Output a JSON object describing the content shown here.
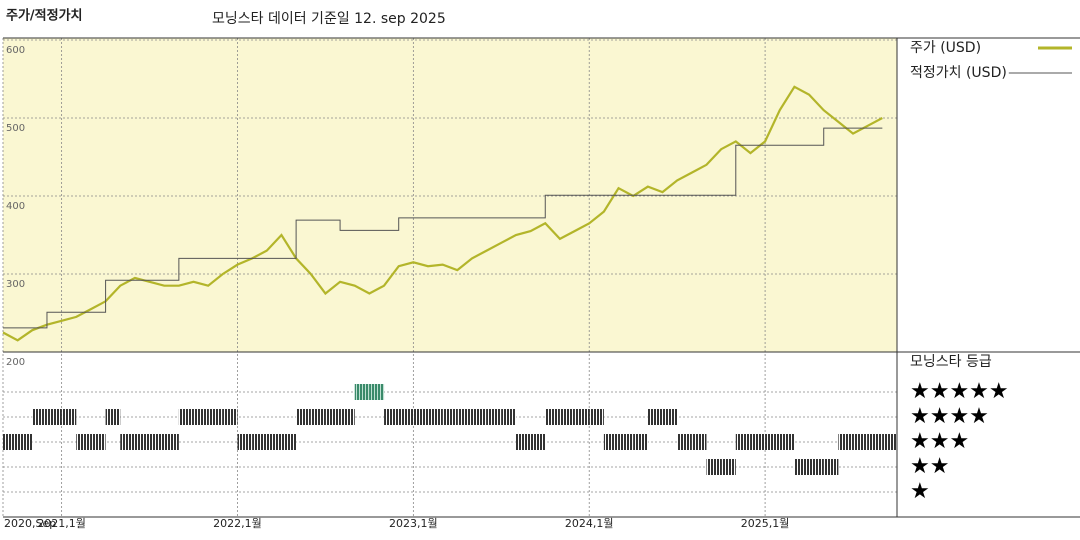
{
  "chart_data": [
    {
      "type": "line",
      "title": "주가/적정가치",
      "subtitle": "모닝스타 데이터 기준일 12. sep 2025",
      "x": [
        "2020-09",
        "2020-10",
        "2020-11",
        "2020-12",
        "2021-01",
        "2021-02",
        "2021-03",
        "2021-04",
        "2021-05",
        "2021-06",
        "2021-07",
        "2021-08",
        "2021-09",
        "2021-10",
        "2021-11",
        "2021-12",
        "2022-01",
        "2022-02",
        "2022-03",
        "2022-04",
        "2022-05",
        "2022-06",
        "2022-07",
        "2022-08",
        "2022-09",
        "2022-10",
        "2022-11",
        "2022-12",
        "2023-01",
        "2023-02",
        "2023-03",
        "2023-04",
        "2023-05",
        "2023-06",
        "2023-07",
        "2023-08",
        "2023-09",
        "2023-10",
        "2023-11",
        "2023-12",
        "2024-01",
        "2024-02",
        "2024-03",
        "2024-04",
        "2024-05",
        "2024-06",
        "2024-07",
        "2024-08",
        "2024-09",
        "2024-10",
        "2024-11",
        "2024-12",
        "2025-01",
        "2025-02",
        "2025-03",
        "2025-04",
        "2025-05",
        "2025-06",
        "2025-07",
        "2025-08",
        "2025-09"
      ],
      "series": [
        {
          "name": "주가 (USD)",
          "color": "#b3b52a",
          "values": [
            225,
            215,
            228,
            235,
            240,
            245,
            255,
            265,
            285,
            295,
            290,
            285,
            285,
            290,
            285,
            300,
            312,
            320,
            330,
            350,
            320,
            300,
            275,
            290,
            285,
            275,
            285,
            310,
            315,
            310,
            312,
            305,
            320,
            330,
            340,
            350,
            355,
            365,
            345,
            355,
            365,
            380,
            410,
            400,
            412,
            405,
            420,
            430,
            440,
            460,
            470,
            455,
            470,
            510,
            540,
            530,
            510,
            495,
            480,
            490,
            500
          ]
        },
        {
          "name": "적정가치 (USD)",
          "color": "#555555",
          "step": true,
          "values": [
            231,
            231,
            231,
            251,
            251,
            251,
            251,
            292,
            292,
            292,
            292,
            292,
            320,
            320,
            320,
            320,
            320,
            320,
            320,
            320,
            369,
            369,
            369,
            356,
            356,
            356,
            356,
            372,
            372,
            372,
            372,
            372,
            372,
            372,
            372,
            372,
            372,
            401,
            401,
            401,
            401,
            401,
            401,
            401,
            401,
            401,
            401,
            401,
            401,
            401,
            465,
            465,
            465,
            465,
            465,
            465,
            487,
            487,
            487,
            487,
            487
          ]
        }
      ],
      "xlim": [
        "2020-09",
        "2025-10"
      ],
      "xticks": [
        {
          "value": "2020-09",
          "label": "2020,Sep"
        },
        {
          "value": "2021-01",
          "label": "2021,1월"
        },
        {
          "value": "2022-01",
          "label": "2022,1월"
        },
        {
          "value": "2023-01",
          "label": "2023,1월"
        },
        {
          "value": "2024-01",
          "label": "2024,1월"
        },
        {
          "value": "2025-01",
          "label": "2025,1월"
        }
      ],
      "ylim": [
        200,
        600
      ],
      "yticks": [
        200,
        300,
        400,
        500,
        600
      ],
      "grid": true
    },
    {
      "type": "rating",
      "title": "모닝스타 등급",
      "color": "#333333",
      "highlight_color": "#3a8a6a",
      "x": [
        "2020-09",
        "2020-10",
        "2020-11",
        "2020-12",
        "2021-01",
        "2021-02",
        "2021-03",
        "2021-04",
        "2021-05",
        "2021-06",
        "2021-07",
        "2021-08",
        "2021-09",
        "2021-10",
        "2021-11",
        "2021-12",
        "2022-01",
        "2022-02",
        "2022-03",
        "2022-04",
        "2022-05",
        "2022-06",
        "2022-07",
        "2022-08",
        "2022-09",
        "2022-10",
        "2022-11",
        "2022-12",
        "2023-01",
        "2023-02",
        "2023-03",
        "2023-04",
        "2023-05",
        "2023-06",
        "2023-07",
        "2023-08",
        "2023-09",
        "2023-10",
        "2023-11",
        "2023-12",
        "2024-01",
        "2024-02",
        "2024-03",
        "2024-04",
        "2024-05",
        "2024-06",
        "2024-07",
        "2024-08",
        "2024-09",
        "2024-10",
        "2024-11",
        "2024-12",
        "2025-01",
        "2025-02",
        "2025-03",
        "2025-04",
        "2025-05",
        "2025-06",
        "2025-07",
        "2025-08",
        "2025-09"
      ],
      "values": [
        3,
        3,
        4,
        4,
        4,
        3,
        3,
        4,
        3,
        3,
        3,
        3,
        4,
        4,
        4,
        4,
        3,
        3,
        3,
        3,
        4,
        4,
        4,
        4,
        5,
        5,
        4,
        4,
        4,
        4,
        4,
        4,
        4,
        4,
        4,
        3,
        3,
        4,
        4,
        4,
        4,
        3,
        3,
        3,
        4,
        4,
        3,
        3,
        2,
        2,
        3,
        3,
        3,
        3,
        2,
        2,
        2,
        3,
        3,
        3,
        3
      ],
      "yticks": [
        {
          "value": 5,
          "label": "★★★★★"
        },
        {
          "value": 4,
          "label": "★★★★"
        },
        {
          "value": 3,
          "label": "★★★"
        },
        {
          "value": 2,
          "label": "★★"
        },
        {
          "value": 1,
          "label": "★"
        }
      ]
    }
  ]
}
